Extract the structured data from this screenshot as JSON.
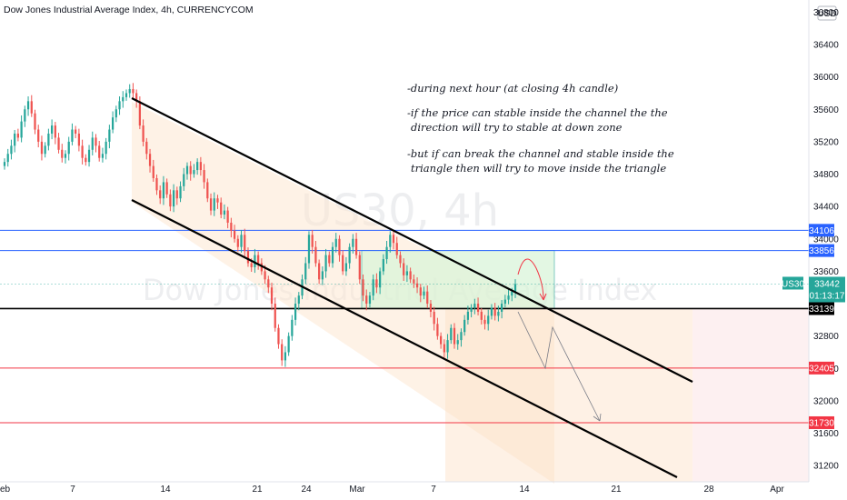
{
  "title": "Dow Jones Industrial Average Index, 4h, CURRENCYCOM",
  "currency": "USD",
  "watermark": {
    "symbol": "US30, 4h",
    "name": "Dow Jones Industrial Average Index"
  },
  "price_tag": {
    "symbol": "US30",
    "price": "33442",
    "countdown": "01:13:17",
    "color": "#26a69a"
  },
  "notes": [
    "-during next hour (at closing 4h candle)",
    "-if the price can stable inside the channel the the",
    "direction will try to stable at down zone",
    "-but if can break the channel and stable inside the",
    "triangle then will try to move inside the triangle"
  ],
  "colors": {
    "up": "#26a69a",
    "down": "#ef5350",
    "blue": "#2962ff",
    "red": "#f23645",
    "black": "#000000"
  },
  "chart_data": {
    "type": "candlestick",
    "title": "Dow Jones Industrial Average Index, 4h, CURRENCYCOM",
    "ylim": [
      31000,
      36950
    ],
    "y_ticks": [
      31200,
      31600,
      32000,
      32400,
      32800,
      33600,
      34000,
      34400,
      34800,
      35200,
      35600,
      36000,
      36400,
      36800
    ],
    "x_tick_labels": [
      "eb",
      "7",
      "14",
      "21",
      "24",
      "Mar",
      "7",
      "14",
      "21",
      "28",
      "Apr"
    ],
    "price_lines": [
      {
        "label": "34106",
        "value": 34106,
        "color": "#2962ff"
      },
      {
        "label": "33856",
        "value": 33856,
        "color": "#2962ff"
      },
      {
        "label": "33139",
        "value": 33139,
        "color": "#000000"
      },
      {
        "label": "32405",
        "value": 32405,
        "color": "#f23645"
      },
      {
        "label": "31730",
        "value": 31730,
        "color": "#f23645"
      }
    ],
    "closes": [
      34950,
      35050,
      35150,
      35300,
      35250,
      35450,
      35600,
      35700,
      35550,
      35350,
      35200,
      35050,
      35150,
      35300,
      35400,
      35250,
      35100,
      35000,
      35050,
      35200,
      35350,
      35300,
      35150,
      35000,
      34950,
      35100,
      35250,
      35150,
      35000,
      35050,
      35200,
      35350,
      35500,
      35600,
      35700,
      35750,
      35800,
      35850,
      35800,
      35700,
      35400,
      35200,
      35050,
      34900,
      34750,
      34600,
      34500,
      34700,
      34550,
      34400,
      34600,
      34500,
      34650,
      34800,
      34900,
      34800,
      34850,
      34950,
      34850,
      34700,
      34500,
      34350,
      34500,
      34450,
      34300,
      34350,
      34200,
      34100,
      34000,
      33900,
      34050,
      33850,
      33700,
      33650,
      33800,
      33700,
      33600,
      33500,
      33400,
      33200,
      32900,
      32700,
      32500,
      32600,
      32800,
      33000,
      33200,
      33300,
      33500,
      33700,
      34050,
      33900,
      33700,
      33500,
      33600,
      33800,
      33700,
      33900,
      34000,
      33800,
      33600,
      33700,
      33900,
      34000,
      33800,
      33500,
      33300,
      33200,
      33300,
      33500,
      33400,
      33600,
      33750,
      33900,
      34050,
      33950,
      33800,
      33700,
      33550,
      33600,
      33500,
      33450,
      33400,
      33300,
      33350,
      33200,
      33100,
      32950,
      32800,
      32700,
      32600,
      32750,
      32900,
      32700,
      32750,
      32850,
      33000,
      33100,
      33150,
      33200,
      33100,
      33000,
      32950,
      33050,
      33150,
      33050,
      33100,
      33200,
      33250,
      33300,
      33350,
      33442
    ]
  }
}
